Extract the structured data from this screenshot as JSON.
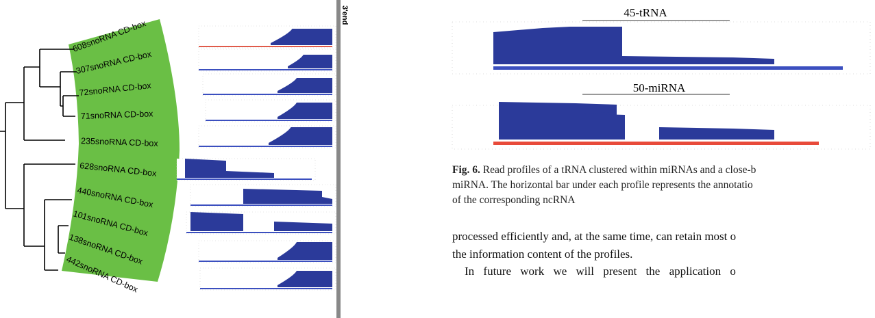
{
  "figure_left": {
    "marker": "3'end",
    "labels": [
      "608snoRNA CD-box",
      "307snoRNA CD-box",
      "72snoRNA CD-box",
      "71snoRNA CD-box",
      "235snoRNA CD-box",
      "628snoRNA CD-box",
      "440snoRNA CD-box",
      "101snoRNA CD-box",
      "138snoRNA CD-box",
      "442snoRNA CD-box"
    ]
  },
  "figure_right": {
    "panels": [
      {
        "title": "45-tRNA"
      },
      {
        "title": "50-miRNA"
      }
    ],
    "caption": {
      "label": "Fig. 6.",
      "lines": [
        "Read profiles of a tRNA clustered within miRNAs and a close-b",
        "miRNA. The horizontal bar under each profile represents the annotatio",
        "of the corresponding ncRNA"
      ]
    }
  },
  "body": {
    "lines": [
      "processed efficiently and, at the same time, can retain most o",
      "the information content of the profiles.",
      "In future work we will present the application o"
    ]
  }
}
